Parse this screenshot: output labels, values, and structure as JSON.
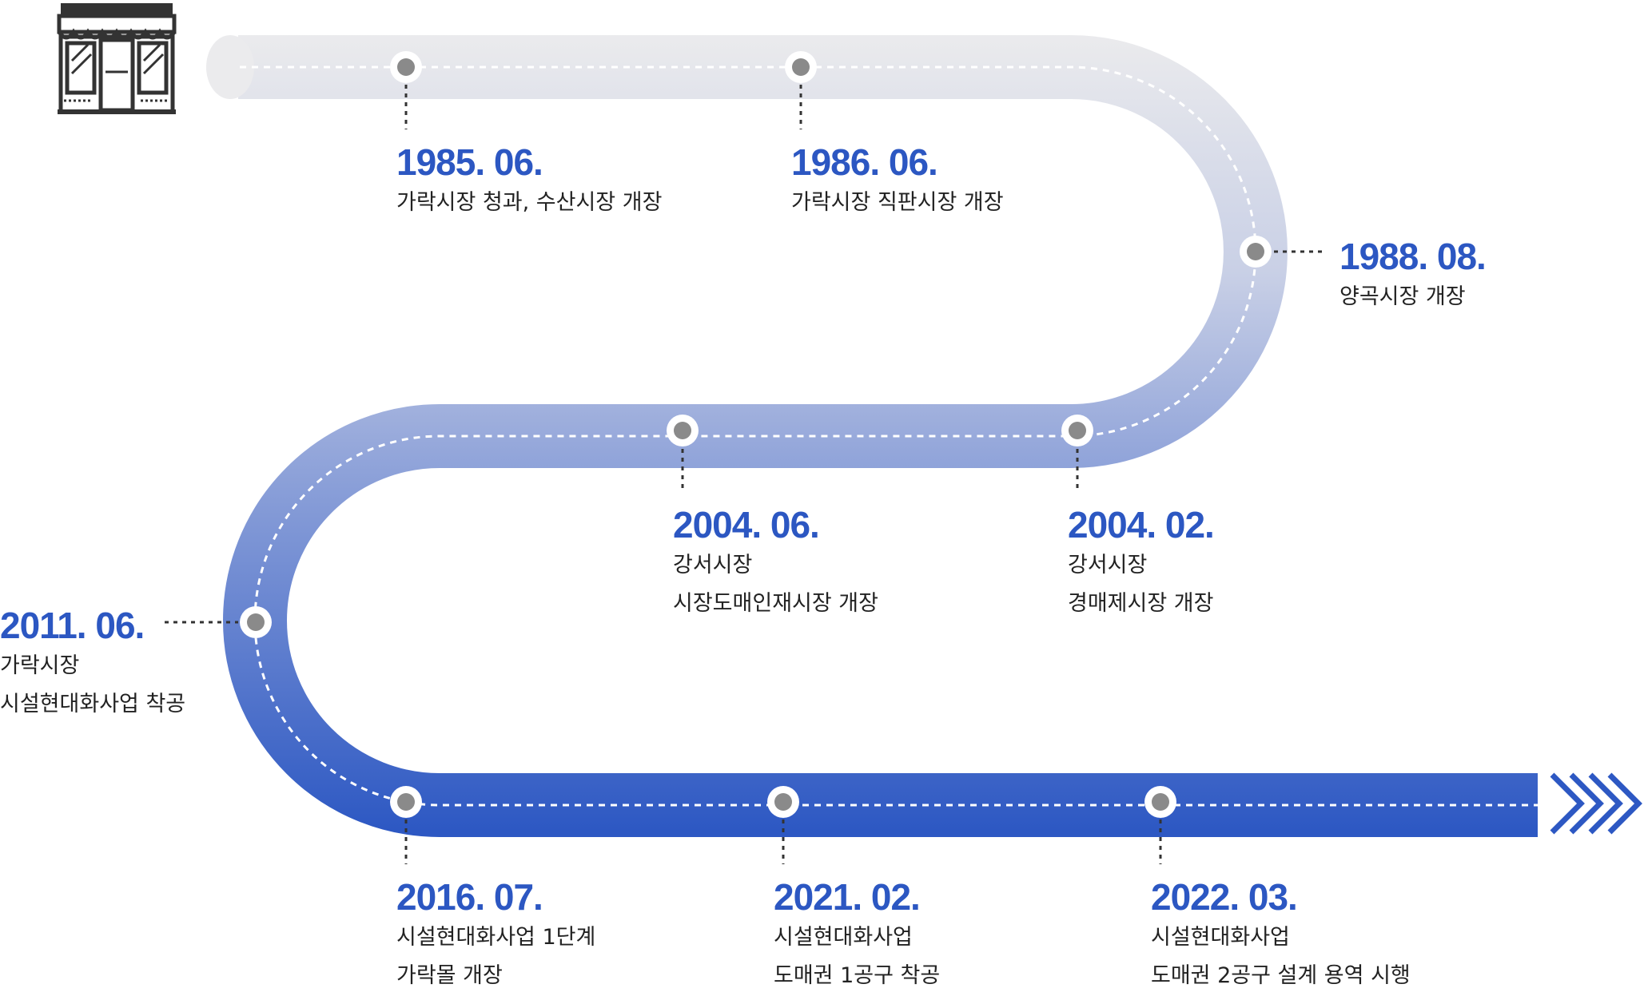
{
  "colors": {
    "road_top": "#ebebed",
    "road_bottom": "#2d58c3",
    "accent": "#2c57c2",
    "node_fill": "#8a8a8a",
    "node_ring": "#ffffff",
    "connector": "#333333",
    "icon": "#333333"
  },
  "icons": {
    "start": "shop-icon",
    "end": "chevrons-right-icon"
  },
  "events": [
    {
      "date": "1985. 06.",
      "lines": [
        "가락시장 청과, 수산시장 개장"
      ]
    },
    {
      "date": "1986. 06.",
      "lines": [
        "가락시장 직판시장 개장"
      ]
    },
    {
      "date": "1988. 08.",
      "lines": [
        "양곡시장 개장"
      ]
    },
    {
      "date": "2004. 02.",
      "lines": [
        "강서시장",
        "경매제시장 개장"
      ]
    },
    {
      "date": "2004. 06.",
      "lines": [
        "강서시장",
        "시장도매인재시장 개장"
      ]
    },
    {
      "date": "2011. 06.",
      "lines": [
        "가락시장",
        "시설현대화사업 착공"
      ]
    },
    {
      "date": "2016. 07.",
      "lines": [
        "시설현대화사업 1단계",
        "가락몰 개장"
      ]
    },
    {
      "date": "2021. 02.",
      "lines": [
        "시설현대화사업",
        "도매권 1공구 착공"
      ]
    },
    {
      "date": "2022. 03.",
      "lines": [
        "시설현대화사업",
        "도매권 2공구 설계 용역 시행"
      ]
    }
  ]
}
